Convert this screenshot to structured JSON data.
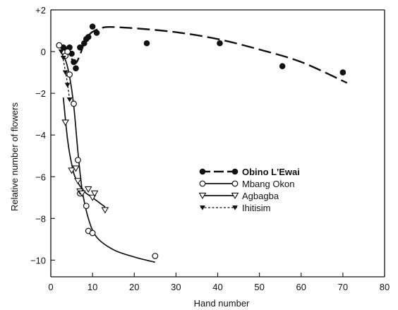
{
  "chart_data": {
    "type": "scatter",
    "title": "",
    "xlabel": "Hand number",
    "ylabel": "Relative number of flowers",
    "xlim": [
      0,
      80
    ],
    "ylim": [
      -10.8,
      2
    ],
    "x_ticks": [
      0,
      10,
      20,
      30,
      40,
      50,
      60,
      70,
      80
    ],
    "x_tick_labels": [
      "0",
      "10",
      "20",
      "30",
      "40",
      "50",
      "60",
      "70",
      "80"
    ],
    "y_ticks": [
      2,
      0,
      -2,
      -4,
      -6,
      -8,
      -10
    ],
    "y_tick_labels": [
      "+2",
      "0",
      "−2",
      "−4",
      "−6",
      "−8",
      "−10"
    ],
    "grid": false,
    "legend_position": "center-right",
    "series": [
      {
        "name": "Obino L'Ewai",
        "marker": "filled-circle",
        "line": "long-dash",
        "points": [
          [
            2,
            0.3
          ],
          [
            3,
            0.2
          ],
          [
            4,
            0.1
          ],
          [
            4.5,
            0.2
          ],
          [
            5,
            -0.1
          ],
          [
            5.5,
            -0.5
          ],
          [
            6,
            -0.8
          ],
          [
            7,
            0.2
          ],
          [
            8,
            0.4
          ],
          [
            8.5,
            0.6
          ],
          [
            9,
            0.7
          ],
          [
            10,
            1.2
          ],
          [
            11,
            0.9
          ],
          [
            23,
            0.4
          ],
          [
            40.5,
            0.4
          ],
          [
            55.5,
            -0.7
          ],
          [
            70,
            -1.0
          ]
        ],
        "curve": [
          [
            2,
            0.25
          ],
          [
            3.5,
            0.05
          ],
          [
            5,
            -0.35
          ],
          [
            6,
            -0.55
          ],
          [
            7,
            -0.15
          ],
          [
            8,
            0.4
          ],
          [
            9,
            0.75
          ],
          [
            10,
            0.95
          ],
          [
            12,
            1.12
          ],
          [
            14,
            1.18
          ],
          [
            20,
            1.12
          ],
          [
            30,
            0.93
          ],
          [
            40,
            0.6
          ],
          [
            50,
            0.1
          ],
          [
            60,
            -0.5
          ],
          [
            71,
            -1.5
          ]
        ]
      },
      {
        "name": "Mbang Okon",
        "marker": "open-circle",
        "line": "solid",
        "points": [
          [
            2,
            0.3
          ],
          [
            3.5,
            -0.2
          ],
          [
            4,
            0.0
          ],
          [
            4.5,
            -1.1
          ],
          [
            5.5,
            -2.5
          ],
          [
            6.5,
            -5.2
          ],
          [
            7,
            -6.8
          ],
          [
            8.5,
            -7.4
          ],
          [
            9,
            -8.6
          ],
          [
            10,
            -8.7
          ],
          [
            25,
            -9.8
          ]
        ],
        "curve": [
          [
            2,
            0.1
          ],
          [
            3.5,
            -0.4
          ],
          [
            4.5,
            -1.2
          ],
          [
            5.5,
            -2.6
          ],
          [
            6.5,
            -4.8
          ],
          [
            7.5,
            -6.6
          ],
          [
            9,
            -8.0
          ],
          [
            11,
            -8.9
          ],
          [
            15,
            -9.5
          ],
          [
            20,
            -9.85
          ],
          [
            25,
            -10.1
          ]
        ]
      },
      {
        "name": "Agbagba",
        "marker": "open-triangle",
        "line": "solid",
        "points": [
          [
            3.5,
            -3.4
          ],
          [
            5,
            -5.7
          ],
          [
            6,
            -5.6
          ],
          [
            6.5,
            -6.2
          ],
          [
            7,
            -6.7
          ],
          [
            7.5,
            -6.8
          ],
          [
            9,
            -6.6
          ],
          [
            10,
            -7.0
          ],
          [
            10.5,
            -6.8
          ],
          [
            13,
            -7.6
          ]
        ],
        "curve": [
          [
            3,
            -2.2
          ],
          [
            4,
            -4.2
          ],
          [
            5,
            -5.4
          ],
          [
            6,
            -6.1
          ],
          [
            8,
            -6.7
          ],
          [
            10,
            -7.0
          ],
          [
            13,
            -7.45
          ]
        ]
      },
      {
        "name": "Ihitisim",
        "marker": "filled-triangle",
        "line": "dotted",
        "points": [
          [
            2.5,
            0.0
          ],
          [
            3,
            -0.3
          ],
          [
            3.5,
            -1.0
          ],
          [
            4,
            -1.6
          ],
          [
            4.5,
            -2.3
          ]
        ],
        "curve": [
          [
            2.5,
            0.0
          ],
          [
            3,
            -0.4
          ],
          [
            3.5,
            -0.95
          ],
          [
            4,
            -1.55
          ],
          [
            4.5,
            -2.3
          ]
        ]
      }
    ]
  }
}
